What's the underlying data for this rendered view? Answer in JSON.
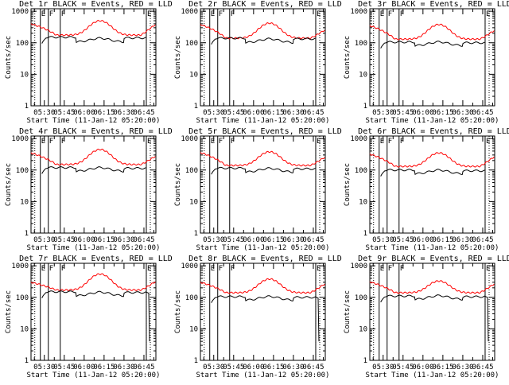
{
  "figure": {
    "ylabel": "Counts/sec",
    "xlabel": "Start Time (11-Jan-12 05:20:00)",
    "xticks": [
      "05:30",
      "05:45",
      "06:00",
      "06:15",
      "06:30",
      "06:45"
    ],
    "yticks": [
      "1",
      "10",
      "100",
      "1000"
    ],
    "marker_E": "E",
    "marker_F": "F"
  },
  "colors": {
    "events": "#000000",
    "lld": "#ff0000",
    "axes": "#000000"
  },
  "chart_data": [
    {
      "type": "line",
      "title": "Det 1r BLACK = Events, RED = LLD",
      "xlabel": "Start Time (11-Jan-12 05:20:00)",
      "ylabel": "Counts/sec",
      "xlim": [
        5.333,
        6.9
      ],
      "ylim": [
        1,
        1200
      ],
      "yscale": "log",
      "night_start": 5.4,
      "night_end": 6.8,
      "series": [
        {
          "name": "Events",
          "color": "black",
          "start": 5.47,
          "end": 6.78,
          "mid": 105,
          "edge": 150,
          "drop_end": false
        },
        {
          "name": "LLD",
          "color": "red",
          "start": 5.333,
          "end": 6.9,
          "min": 175,
          "peak": 500,
          "start_val": 400,
          "end_val": 390
        }
      ],
      "annotations": {
        "E_times": [
          5.45,
          6.78
        ],
        "F_times": [
          5.55,
          5.7
        ]
      }
    },
    {
      "type": "line",
      "title": "Det 2r BLACK = Events, RED = LLD",
      "xlabel": "Start Time (11-Jan-12 05:20:00)",
      "ylabel": "Counts/sec",
      "xlim": [
        5.333,
        6.9
      ],
      "ylim": [
        1,
        1200
      ],
      "yscale": "log",
      "night_start": 5.4,
      "night_end": 6.8,
      "series": [
        {
          "name": "Events",
          "color": "black",
          "start": 5.47,
          "end": 6.78,
          "mid": 100,
          "edge": 140,
          "drop_end": false
        },
        {
          "name": "LLD",
          "color": "red",
          "start": 5.333,
          "end": 6.9,
          "min": 140,
          "peak": 420,
          "start_val": 380,
          "end_val": 260
        }
      ],
      "annotations": {
        "E_times": [
          5.45,
          6.78
        ],
        "F_times": [
          5.55,
          5.7
        ]
      }
    },
    {
      "type": "line",
      "title": "Det 3r BLACK = Events, RED = LLD",
      "xlabel": "Start Time (11-Jan-12 05:20:00)",
      "ylabel": "Counts/sec",
      "xlim": [
        5.333,
        6.9
      ],
      "ylim": [
        1,
        1200
      ],
      "yscale": "log",
      "night_start": 5.4,
      "night_end": 6.8,
      "series": [
        {
          "name": "Events",
          "color": "black",
          "start": 5.47,
          "end": 6.78,
          "mid": 80,
          "edge": 105,
          "drop_end": false
        },
        {
          "name": "LLD",
          "color": "red",
          "start": 5.333,
          "end": 6.9,
          "min": 130,
          "peak": 380,
          "start_val": 350,
          "end_val": 250
        }
      ],
      "annotations": {
        "E_times": [
          5.45,
          6.78
        ],
        "F_times": [
          5.55,
          5.7
        ]
      }
    },
    {
      "type": "line",
      "title": "Det 4r BLACK = Events, RED = LLD",
      "xlabel": "Start Time (11-Jan-12 05:20:00)",
      "ylabel": "Counts/sec",
      "xlim": [
        5.333,
        6.9
      ],
      "ylim": [
        1,
        1200
      ],
      "yscale": "log",
      "night_start": 5.4,
      "night_end": 6.8,
      "series": [
        {
          "name": "Events",
          "color": "black",
          "start": 5.47,
          "end": 6.78,
          "mid": 90,
          "edge": 120,
          "drop_end": false
        },
        {
          "name": "LLD",
          "color": "red",
          "start": 5.333,
          "end": 6.9,
          "min": 150,
          "peak": 450,
          "start_val": 350,
          "end_val": 280
        }
      ],
      "annotations": {
        "E_times": [
          5.45,
          6.78
        ],
        "F_times": [
          5.55,
          5.7
        ]
      }
    },
    {
      "type": "line",
      "title": "Det 5r BLACK = Events, RED = LLD",
      "xlabel": "Start Time (11-Jan-12 05:20:00)",
      "ylabel": "Counts/sec",
      "xlim": [
        5.333,
        6.9
      ],
      "ylim": [
        1,
        1200
      ],
      "yscale": "log",
      "night_start": 5.4,
      "night_end": 6.8,
      "series": [
        {
          "name": "Events",
          "color": "black",
          "start": 5.47,
          "end": 6.78,
          "mid": 85,
          "edge": 115,
          "drop_end": false
        },
        {
          "name": "LLD",
          "color": "red",
          "start": 5.333,
          "end": 6.9,
          "min": 140,
          "peak": 380,
          "start_val": 360,
          "end_val": 260
        }
      ],
      "annotations": {
        "E_times": [
          5.45,
          6.78
        ],
        "F_times": [
          5.55,
          5.7
        ]
      }
    },
    {
      "type": "line",
      "title": "Det 6r BLACK = Events, RED = LLD",
      "xlabel": "Start Time (11-Jan-12 05:20:00)",
      "ylabel": "Counts/sec",
      "xlim": [
        5.333,
        6.9
      ],
      "ylim": [
        1,
        1200
      ],
      "yscale": "log",
      "night_start": 5.4,
      "night_end": 6.8,
      "series": [
        {
          "name": "Events",
          "color": "black",
          "start": 5.47,
          "end": 6.78,
          "mid": 75,
          "edge": 100,
          "drop_end": false
        },
        {
          "name": "LLD",
          "color": "red",
          "start": 5.333,
          "end": 6.9,
          "min": 130,
          "peak": 350,
          "start_val": 320,
          "end_val": 270
        }
      ],
      "annotations": {
        "E_times": [
          5.45,
          6.78
        ],
        "F_times": [
          5.55,
          5.7
        ]
      }
    },
    {
      "type": "line",
      "title": "Det 7r BLACK = Events, RED = LLD",
      "xlabel": "Start Time (11-Jan-12 05:20:00)",
      "ylabel": "Counts/sec",
      "xlim": [
        5.333,
        6.9
      ],
      "ylim": [
        1,
        1200
      ],
      "yscale": "log",
      "night_start": 5.4,
      "night_end": 6.8,
      "series": [
        {
          "name": "Events",
          "color": "black",
          "start": 5.47,
          "end": 6.78,
          "mid": 110,
          "edge": 150,
          "drop_end": true
        },
        {
          "name": "LLD",
          "color": "red",
          "start": 5.333,
          "end": 6.9,
          "min": 170,
          "peak": 550,
          "start_val": 300,
          "end_val": 320
        }
      ],
      "annotations": {
        "E_times": [
          5.45,
          6.78
        ],
        "F_times": [
          5.55,
          5.7
        ]
      }
    },
    {
      "type": "line",
      "title": "Det 8r BLACK = Events, RED = LLD",
      "xlabel": "Start Time (11-Jan-12 05:20:00)",
      "ylabel": "Counts/sec",
      "xlim": [
        5.333,
        6.9
      ],
      "ylim": [
        1,
        1200
      ],
      "yscale": "log",
      "night_start": 5.4,
      "night_end": 6.8,
      "series": [
        {
          "name": "Events",
          "color": "black",
          "start": 5.47,
          "end": 6.78,
          "mid": 80,
          "edge": 105,
          "drop_end": true
        },
        {
          "name": "LLD",
          "color": "red",
          "start": 5.333,
          "end": 6.9,
          "min": 140,
          "peak": 380,
          "start_val": 300,
          "end_val": 270
        }
      ],
      "annotations": {
        "E_times": [
          5.45,
          6.78
        ],
        "F_times": [
          5.55,
          5.7
        ]
      }
    },
    {
      "type": "line",
      "title": "Det 9r BLACK = Events, RED = LLD",
      "xlabel": "Start Time (11-Jan-12 05:20:00)",
      "ylabel": "Counts/sec",
      "xlim": [
        5.333,
        6.9
      ],
      "ylim": [
        1,
        1200
      ],
      "yscale": "log",
      "night_start": 5.4,
      "night_end": 6.8,
      "series": [
        {
          "name": "Events",
          "color": "black",
          "start": 5.47,
          "end": 6.78,
          "mid": 85,
          "edge": 110,
          "drop_end": true
        },
        {
          "name": "LLD",
          "color": "red",
          "start": 5.333,
          "end": 6.9,
          "min": 140,
          "peak": 330,
          "start_val": 310,
          "end_val": 270
        }
      ],
      "annotations": {
        "E_times": [
          5.45,
          6.78
        ],
        "F_times": [
          5.55,
          5.7
        ]
      }
    }
  ]
}
